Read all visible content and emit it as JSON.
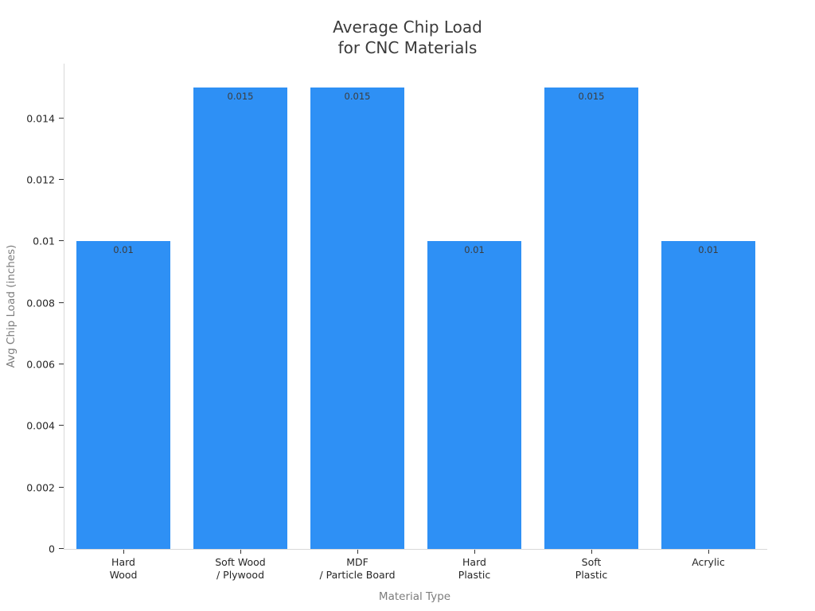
{
  "chart_data": {
    "type": "bar",
    "title": "Average Chip Load\nfor CNC Materials",
    "xlabel": "Material Type",
    "ylabel": "Avg Chip Load (inches)",
    "categories": [
      "Hard\nWood",
      "Soft Wood\n/ Plywood",
      "MDF\n/ Particle Board",
      "Hard\nPlastic",
      "Soft\nPlastic",
      "Acrylic"
    ],
    "values": [
      0.01,
      0.015,
      0.015,
      0.01,
      0.015,
      0.01
    ],
    "bar_labels": [
      "0.01",
      "0.015",
      "0.015",
      "0.01",
      "0.015",
      "0.01"
    ],
    "yticks": [
      0,
      0.002,
      0.004,
      0.006,
      0.008,
      0.01,
      0.012,
      0.014
    ],
    "ytick_labels": [
      "0",
      "0.002",
      "0.004",
      "0.006",
      "0.008",
      "0.01",
      "0.012",
      "0.014"
    ],
    "ylim": [
      0,
      0.01578
    ],
    "bar_color": "#2E90F5",
    "grid": false,
    "legend": null,
    "background_color": "#ffffff",
    "spine_color": "#d9d9d9"
  }
}
